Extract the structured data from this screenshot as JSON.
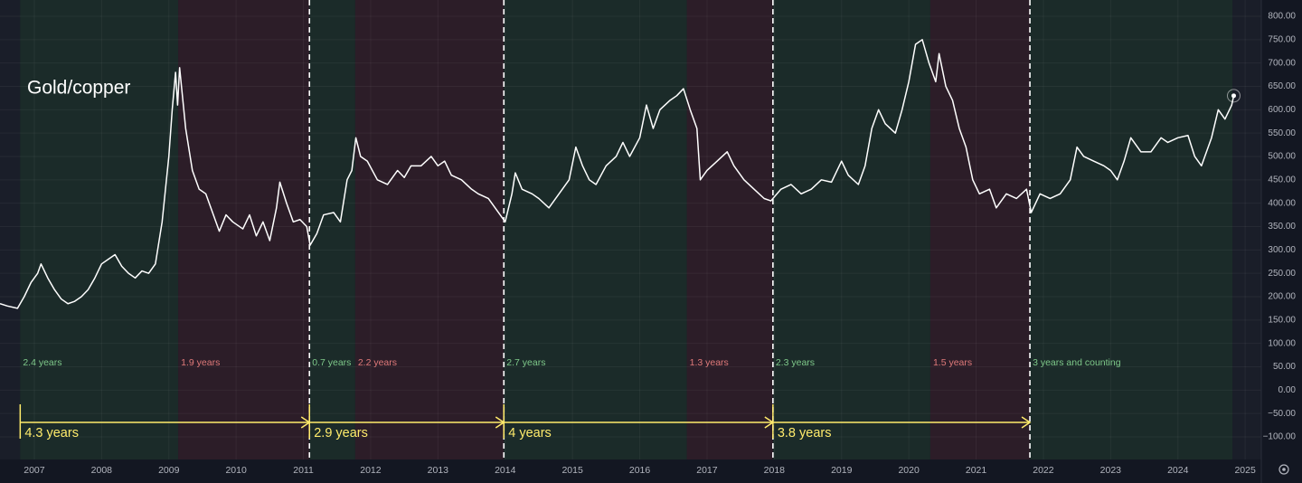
{
  "chart_data": {
    "type": "line",
    "title": "Gold/copper",
    "color": "#ffffff",
    "xlim": [
      2006.49,
      2025.24
    ],
    "ylim": [
      -148.4,
      834.8
    ],
    "xticks": [
      2007,
      2008,
      2009,
      2010,
      2011,
      2012,
      2013,
      2014,
      2015,
      2016,
      2017,
      2018,
      2019,
      2020,
      2021,
      2022,
      2023,
      2024,
      2025
    ],
    "yticks": [
      {
        "value": 800,
        "label": "800.00"
      },
      {
        "value": 750,
        "label": "750.00"
      },
      {
        "value": 700,
        "label": "700.00"
      },
      {
        "value": 650,
        "label": "650.00"
      },
      {
        "value": 600,
        "label": "600.00"
      },
      {
        "value": 550,
        "label": "550.00"
      },
      {
        "value": 500,
        "label": "500.00"
      },
      {
        "value": 450,
        "label": "450.00"
      },
      {
        "value": 400,
        "label": "400.00"
      },
      {
        "value": 350,
        "label": "350.00"
      },
      {
        "value": 300,
        "label": "300.00"
      },
      {
        "value": 250,
        "label": "250.00"
      },
      {
        "value": 200,
        "label": "200.00"
      },
      {
        "value": 150,
        "label": "150.00"
      },
      {
        "value": 100,
        "label": "100.00"
      },
      {
        "value": 50,
        "label": "50.00"
      },
      {
        "value": 0,
        "label": "0.00"
      },
      {
        "value": -50,
        "label": "−50.00"
      },
      {
        "value": -100,
        "label": "−100.00"
      }
    ],
    "grid": true,
    "x": [
      2006.49,
      2006.6,
      2006.75,
      2006.85,
      2006.95,
      2007.05,
      2007.1,
      2007.2,
      2007.3,
      2007.4,
      2007.5,
      2007.6,
      2007.7,
      2007.8,
      2007.9,
      2008.0,
      2008.1,
      2008.2,
      2008.3,
      2008.4,
      2008.5,
      2008.6,
      2008.7,
      2008.8,
      2008.9,
      2009.0,
      2009.05,
      2009.1,
      2009.13,
      2009.16,
      2009.25,
      2009.35,
      2009.45,
      2009.55,
      2009.65,
      2009.75,
      2009.85,
      2009.95,
      2010.1,
      2010.2,
      2010.3,
      2010.4,
      2010.5,
      2010.6,
      2010.65,
      2010.75,
      2010.85,
      2010.95,
      2011.05,
      2011.1,
      2011.2,
      2011.3,
      2011.45,
      2011.55,
      2011.65,
      2011.72,
      2011.78,
      2011.85,
      2011.95,
      2012.1,
      2012.25,
      2012.4,
      2012.5,
      2012.6,
      2012.75,
      2012.9,
      2013.0,
      2013.1,
      2013.2,
      2013.35,
      2013.5,
      2013.6,
      2013.75,
      2013.9,
      2014.0,
      2014.1,
      2014.15,
      2014.25,
      2014.4,
      2014.5,
      2014.65,
      2014.8,
      2014.95,
      2015.05,
      2015.15,
      2015.25,
      2015.35,
      2015.5,
      2015.65,
      2015.75,
      2015.85,
      2016.0,
      2016.1,
      2016.2,
      2016.3,
      2016.45,
      2016.55,
      2016.65,
      2016.75,
      2016.85,
      2016.9,
      2017.0,
      2017.15,
      2017.3,
      2017.4,
      2017.55,
      2017.7,
      2017.85,
      2017.95,
      2018.1,
      2018.25,
      2018.4,
      2018.55,
      2018.7,
      2018.85,
      2019.0,
      2019.1,
      2019.25,
      2019.35,
      2019.45,
      2019.55,
      2019.65,
      2019.8,
      2019.9,
      2020.0,
      2020.1,
      2020.2,
      2020.3,
      2020.4,
      2020.45,
      2020.55,
      2020.65,
      2020.75,
      2020.85,
      2020.95,
      2021.05,
      2021.2,
      2021.3,
      2021.45,
      2021.6,
      2021.75,
      2021.82,
      2021.95,
      2022.1,
      2022.25,
      2022.4,
      2022.5,
      2022.6,
      2022.75,
      2022.9,
      2023.0,
      2023.1,
      2023.2,
      2023.3,
      2023.45,
      2023.6,
      2023.75,
      2023.85,
      2024.0,
      2024.15,
      2024.25,
      2024.35,
      2024.5,
      2024.6,
      2024.7,
      2024.8,
      2024.83
    ],
    "values": [
      185,
      180,
      175,
      200,
      230,
      250,
      270,
      240,
      215,
      195,
      185,
      190,
      200,
      215,
      240,
      270,
      280,
      290,
      265,
      250,
      240,
      255,
      250,
      270,
      360,
      500,
      600,
      680,
      610,
      690,
      560,
      470,
      430,
      420,
      380,
      340,
      375,
      360,
      345,
      375,
      330,
      360,
      320,
      390,
      445,
      400,
      360,
      365,
      350,
      310,
      335,
      375,
      380,
      360,
      450,
      470,
      540,
      500,
      490,
      450,
      440,
      470,
      455,
      480,
      480,
      500,
      480,
      490,
      460,
      450,
      430,
      420,
      410,
      380,
      360,
      420,
      465,
      430,
      420,
      410,
      390,
      420,
      450,
      520,
      480,
      450,
      440,
      480,
      500,
      530,
      500,
      540,
      610,
      560,
      600,
      620,
      630,
      645,
      600,
      560,
      450,
      470,
      490,
      510,
      480,
      450,
      430,
      410,
      405,
      430,
      440,
      420,
      430,
      450,
      445,
      490,
      460,
      440,
      480,
      560,
      600,
      570,
      550,
      600,
      660,
      740,
      750,
      700,
      660,
      720,
      650,
      620,
      560,
      520,
      450,
      420,
      430,
      390,
      420,
      410,
      430,
      380,
      420,
      410,
      420,
      450,
      520,
      500,
      490,
      480,
      470,
      450,
      490,
      540,
      510,
      510,
      540,
      530,
      540,
      545,
      500,
      480,
      540,
      600,
      580,
      610,
      630
    ],
    "regions": [
      {
        "start": 2006.79,
        "end": 2009.14,
        "label": "2.4 years",
        "color": "#1b2b29",
        "label_color": "#7fc98a"
      },
      {
        "start": 2009.14,
        "end": 2011.09,
        "label": "1.9 years",
        "color": "#2c1d28",
        "label_color": "#e07a7a"
      },
      {
        "start": 2011.09,
        "end": 2011.77,
        "label": "0.7 years",
        "color": "#1b2b29",
        "label_color": "#7fc98a"
      },
      {
        "start": 2011.77,
        "end": 2013.98,
        "label": "2.2 years",
        "color": "#2c1d28",
        "label_color": "#e07a7a"
      },
      {
        "start": 2013.98,
        "end": 2016.7,
        "label": "2.7 years",
        "color": "#1b2b29",
        "label_color": "#7fc98a"
      },
      {
        "start": 2016.7,
        "end": 2017.98,
        "label": "1.3 years",
        "color": "#2c1d28",
        "label_color": "#e07a7a"
      },
      {
        "start": 2017.98,
        "end": 2020.32,
        "label": "2.3 years",
        "color": "#1b2b29",
        "label_color": "#7fc98a"
      },
      {
        "start": 2020.32,
        "end": 2021.8,
        "label": "1.5 years",
        "color": "#2c1d28",
        "label_color": "#e07a7a"
      },
      {
        "start": 2021.8,
        "end": 2024.81,
        "label": "3 years and counting",
        "color": "#1b2b29",
        "label_color": "#7fc98a"
      }
    ],
    "markers": [
      2011.09,
      2013.98,
      2017.98,
      2021.8
    ],
    "arrows": [
      {
        "from": 2006.79,
        "to": 2011.09,
        "label": "4.3 years"
      },
      {
        "from": 2011.09,
        "to": 2013.98,
        "label": "2.9 years"
      },
      {
        "from": 2013.98,
        "to": 2017.98,
        "label": "4 years"
      },
      {
        "from": 2017.98,
        "to": 2021.8,
        "label": "3.8 years"
      }
    ]
  }
}
